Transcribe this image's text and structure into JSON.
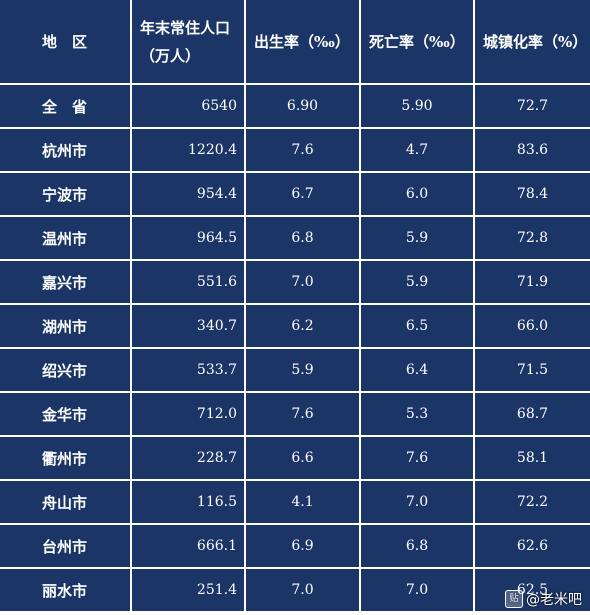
{
  "table": {
    "headers": {
      "region": "地　区",
      "population_line1": "年末常住人口",
      "population_line2": "（万人）",
      "birth_rate": "出生率（‰）",
      "death_rate": "死亡率（‰）",
      "urbanization": "城镇化率（%）"
    },
    "rows": [
      {
        "region": "全　省",
        "population": "6540",
        "birth": "6.90",
        "death": "5.90",
        "urban": "72.7"
      },
      {
        "region": "杭州市",
        "population": "1220.4",
        "birth": "7.6",
        "death": "4.7",
        "urban": "83.6"
      },
      {
        "region": "宁波市",
        "population": "954.4",
        "birth": "6.7",
        "death": "6.0",
        "urban": "78.4"
      },
      {
        "region": "温州市",
        "population": "964.5",
        "birth": "6.8",
        "death": "5.9",
        "urban": "72.8"
      },
      {
        "region": "嘉兴市",
        "population": "551.6",
        "birth": "7.0",
        "death": "5.9",
        "urban": "71.9"
      },
      {
        "region": "湖州市",
        "population": "340.7",
        "birth": "6.2",
        "death": "6.5",
        "urban": "66.0"
      },
      {
        "region": "绍兴市",
        "population": "533.7",
        "birth": "5.9",
        "death": "6.4",
        "urban": "71.5"
      },
      {
        "region": "金华市",
        "population": "712.0",
        "birth": "7.6",
        "death": "5.3",
        "urban": "68.7"
      },
      {
        "region": "衢州市",
        "population": "228.7",
        "birth": "6.6",
        "death": "7.6",
        "urban": "58.1"
      },
      {
        "region": "舟山市",
        "population": "116.5",
        "birth": "4.1",
        "death": "7.0",
        "urban": "72.2"
      },
      {
        "region": "台州市",
        "population": "666.1",
        "birth": "6.9",
        "death": "6.8",
        "urban": "62.6"
      },
      {
        "region": "丽水市",
        "population": "251.4",
        "birth": "7.0",
        "death": "7.0",
        "urban": "62.5"
      }
    ]
  },
  "watermark": {
    "icon": "贴",
    "text": "@老米吧",
    "icon_name": "tieba-logo-icon"
  },
  "colors": {
    "cell_background": "#1b3566",
    "grid_lines": "#ffffff",
    "text": "#ffffff"
  }
}
